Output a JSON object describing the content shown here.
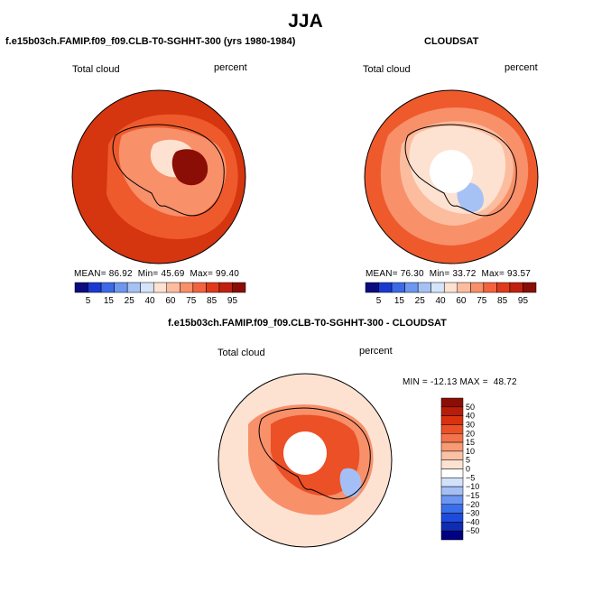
{
  "page": {
    "season": "JJA",
    "panel1_title": "f.e15b03ch.FAMIP.f09_f09.CLB-T0-SGHHT-300 (yrs 1980-1984)",
    "panel2_title": "CLOUDSAT",
    "panel3_title": "f.e15b03ch.FAMIP.f09_f09.CLB-T0-SGHHT-300 - CLOUDSAT"
  },
  "colors": {
    "seq": [
      "#0c0c80",
      "#1a39d2",
      "#3c6ae6",
      "#6e97ef",
      "#a6c2f5",
      "#d6e4fa",
      "#fde2d2",
      "#fcbd9f",
      "#f8906a",
      "#f2643f",
      "#e03a1c",
      "#c0210f",
      "#8a0e05"
    ],
    "diff": [
      "#000080",
      "#0f2cb4",
      "#1f4bdc",
      "#3a6fec",
      "#6d96f2",
      "#a4bff6",
      "#d3e2fb",
      "#ffffff",
      "#fde2d2",
      "#fbc1a4",
      "#f89a74",
      "#f3734b",
      "#ec5026",
      "#d8320f",
      "#b91c08",
      "#8a0e05"
    ],
    "map_bg1": "#d5350f",
    "map_bg2": "#ee5a2c",
    "map_bg3": "#fcd4be",
    "land_line": "#000000"
  },
  "chart_data": [
    {
      "type": "heatmap",
      "projection": "south-polar-stereographic",
      "title": "f.e15b03ch.FAMIP.f09_f09.CLB-T0-SGHHT-300 (yrs 1980-1984)",
      "variable_label": "Total cloud",
      "units_label": "percent",
      "stats": {
        "mean_label": "MEAN=",
        "mean": "86.92",
        "min_label": "Min=",
        "min": "45.69",
        "max_label": "Max=",
        "max": "99.40"
      },
      "colorbar": {
        "orientation": "horizontal",
        "tick_labels": [
          "5",
          "15",
          "25",
          "40",
          "60",
          "75",
          "85",
          "95"
        ]
      }
    },
    {
      "type": "heatmap",
      "projection": "south-polar-stereographic",
      "title": "CLOUDSAT",
      "variable_label": "Total cloud",
      "units_label": "percent",
      "stats": {
        "mean_label": "MEAN=",
        "mean": "76.30",
        "min_label": "Min=",
        "min": "33.72",
        "max_label": "Max=",
        "max": "93.57"
      },
      "colorbar": {
        "orientation": "horizontal",
        "tick_labels": [
          "5",
          "15",
          "25",
          "40",
          "60",
          "75",
          "85",
          "95"
        ]
      }
    },
    {
      "type": "heatmap",
      "projection": "south-polar-stereographic",
      "title": "f.e15b03ch.FAMIP.f09_f09.CLB-T0-SGHHT-300 - CLOUDSAT",
      "variable_label": "Total cloud",
      "units_label": "percent",
      "stats": {
        "min_label": "MIN =",
        "min": "-12.13",
        "max_label": "MAX =",
        "max": "48.72"
      },
      "colorbar": {
        "orientation": "vertical",
        "tick_labels": [
          "50",
          "40",
          "30",
          "20",
          "15",
          "10",
          "5",
          "0",
          "−5",
          "−10",
          "−15",
          "−20",
          "−30",
          "−40",
          "−50"
        ]
      }
    }
  ]
}
